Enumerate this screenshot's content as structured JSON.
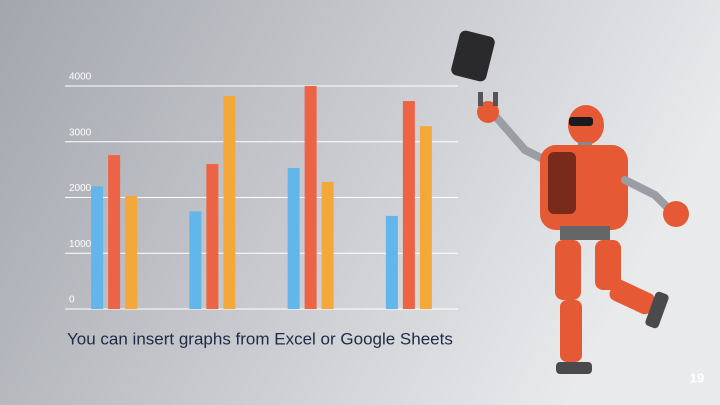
{
  "chart_data": {
    "type": "bar",
    "categories": [
      null,
      null,
      null,
      null
    ],
    "series": [
      {
        "color": "#62b6ea",
        "values": [
          2200,
          1750,
          2530,
          1670
        ]
      },
      {
        "color": "#ec6445",
        "values": [
          2760,
          2600,
          4000,
          3730
        ]
      },
      {
        "color": "#f5a83a",
        "values": [
          2030,
          3820,
          2280,
          3280
        ]
      }
    ],
    "ylim": [
      0,
      4000
    ],
    "yticks": [
      0,
      1000,
      2000,
      3000,
      4000
    ],
    "grid": true
  },
  "slide": {
    "caption": "You can insert graphs from Excel or Google Sheets",
    "page_number": "19"
  }
}
